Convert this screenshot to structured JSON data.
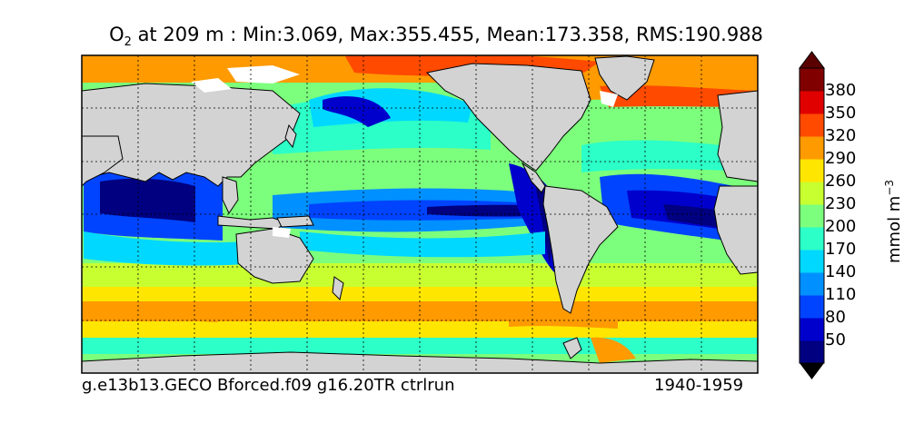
{
  "title": {
    "variable": "O",
    "subscript": "2",
    "rest": " at 209 m : Min:3.069, Max:355.455, Mean:173.358, RMS:190.988"
  },
  "footer": {
    "run_name": "g.e13b13.GECO Bforced.f09 g16.20TR ctrlrun",
    "years": "1940-1959"
  },
  "colorbar": {
    "unit": "mmol m",
    "unit_exponent": "−3",
    "ticks": [
      "380",
      "350",
      "320",
      "290",
      "260",
      "230",
      "200",
      "170",
      "140",
      "110",
      "80",
      "50"
    ],
    "colors": [
      "#000080",
      "#0000cd",
      "#0044ff",
      "#0090ff",
      "#00d8ff",
      "#2cffc8",
      "#7cff7c",
      "#c8ff30",
      "#ffe600",
      "#ff9a00",
      "#ff4a00",
      "#e00000",
      "#800000"
    ]
  },
  "map": {
    "land_color": "#d3d3d3",
    "ice_color": "#ffffff",
    "grid_lines": "dotted",
    "projection": "cylindrical, centered on Pacific"
  }
}
